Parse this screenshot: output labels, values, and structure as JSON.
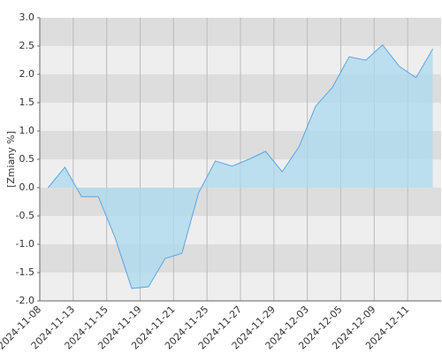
{
  "chart_data": {
    "type": "area",
    "y_label": "[Zmiany %]",
    "x_tick_labels": [
      "2024-11-08",
      "2024-11-13",
      "2024-11-15",
      "2024-11-19",
      "2024-11-21",
      "2024-11-25",
      "2024-11-27",
      "2024-11-29",
      "2024-12-03",
      "2024-12-05",
      "2024-12-09",
      "2024-12-11"
    ],
    "values": [
      0.0,
      0.36,
      -0.16,
      -0.16,
      -0.88,
      -1.78,
      -1.75,
      -1.25,
      -1.16,
      -0.09,
      0.47,
      0.38,
      0.5,
      0.64,
      0.28,
      0.72,
      1.44,
      1.77,
      2.31,
      2.25,
      2.52,
      2.14,
      1.94,
      2.45
    ],
    "color": "#5ba3e6",
    "fill": "#a9d9ef",
    "ylim": [
      -2,
      3
    ],
    "yticks": [
      {
        "value": -2,
        "label": "-2.0"
      },
      -1.5,
      {
        "value": -1,
        "label": "-1.0"
      },
      -0.5,
      {
        "value": 0,
        "label": "0.0"
      },
      0.5,
      {
        "value": 1,
        "label": "1.0"
      },
      1.5,
      {
        "value": 2,
        "label": "2.0"
      },
      2.5,
      {
        "value": 3,
        "label": "3.0"
      }
    ],
    "grid": true
  }
}
